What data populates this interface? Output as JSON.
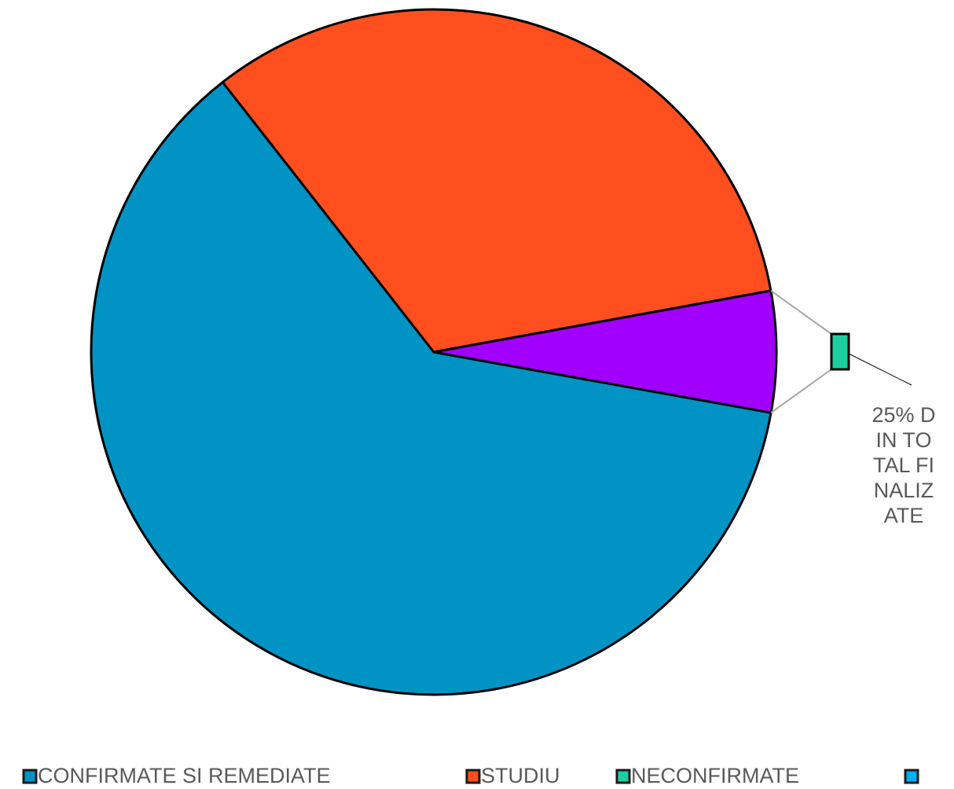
{
  "chart_data": {
    "type": "bar-of-pie",
    "categories": [
      "CONFIRMATE SI REMEDIATE",
      "STUDIU",
      "NECONFIRMATE",
      null
    ],
    "values": [
      61.6,
      32.7,
      5.7,
      0
    ],
    "colors": [
      "#0093c4",
      "#ff4f1f",
      "#1ccfa0",
      "#00b0f0"
    ],
    "other_color": "#a100ff",
    "annotation": "25% DIN TOTAL FINALIZATE"
  }
}
